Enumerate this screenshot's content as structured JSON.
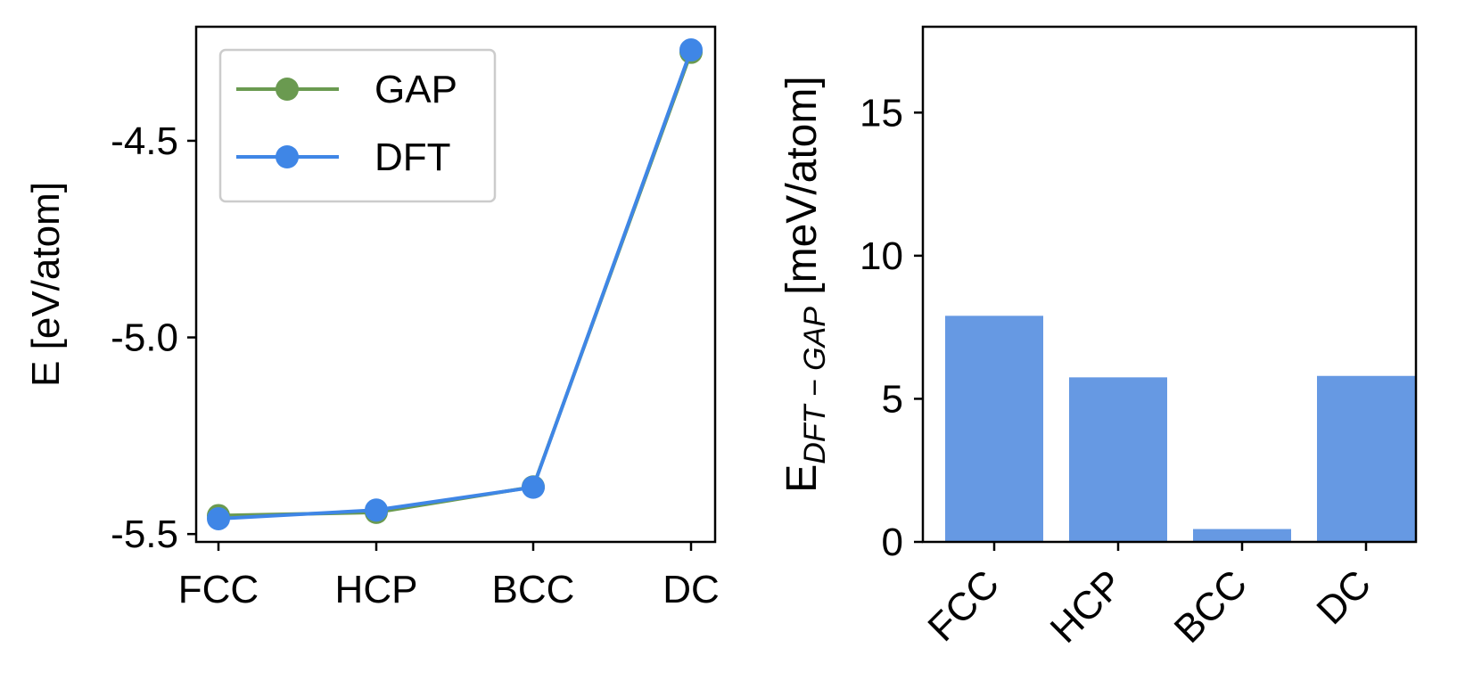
{
  "chart_data": [
    {
      "type": "line",
      "categories": [
        "FCC",
        "HCP",
        "BCC",
        "DC"
      ],
      "series": [
        {
          "name": "GAP",
          "color": "#6a9a50",
          "values": [
            -5.453,
            -5.445,
            -5.38,
            -4.275
          ]
        },
        {
          "name": "DFT",
          "color": "#3f86e6",
          "values": [
            -5.461,
            -5.439,
            -5.381,
            -4.269
          ]
        }
      ],
      "ylabel": "E [eV/atom]",
      "ylim": [
        -5.52,
        -4.21
      ],
      "yticks": [
        -5.5,
        -5.0,
        -4.5
      ],
      "ytick_labels": [
        "-5.5",
        "-5.0",
        "-4.5"
      ],
      "legend_position": "top-left"
    },
    {
      "type": "bar",
      "categories": [
        "FCC",
        "HCP",
        "BCC",
        "DC"
      ],
      "values": [
        7.9,
        5.75,
        0.45,
        5.8
      ],
      "color": "#6699e3",
      "ylabel_main": "E",
      "ylabel_sub": "DFT − GAP",
      "ylabel_tail": " [meV/atom]",
      "ylim": [
        0,
        18
      ],
      "yticks": [
        0,
        5,
        10,
        15
      ],
      "ytick_labels": [
        "0",
        "5",
        "10",
        "15"
      ]
    }
  ]
}
